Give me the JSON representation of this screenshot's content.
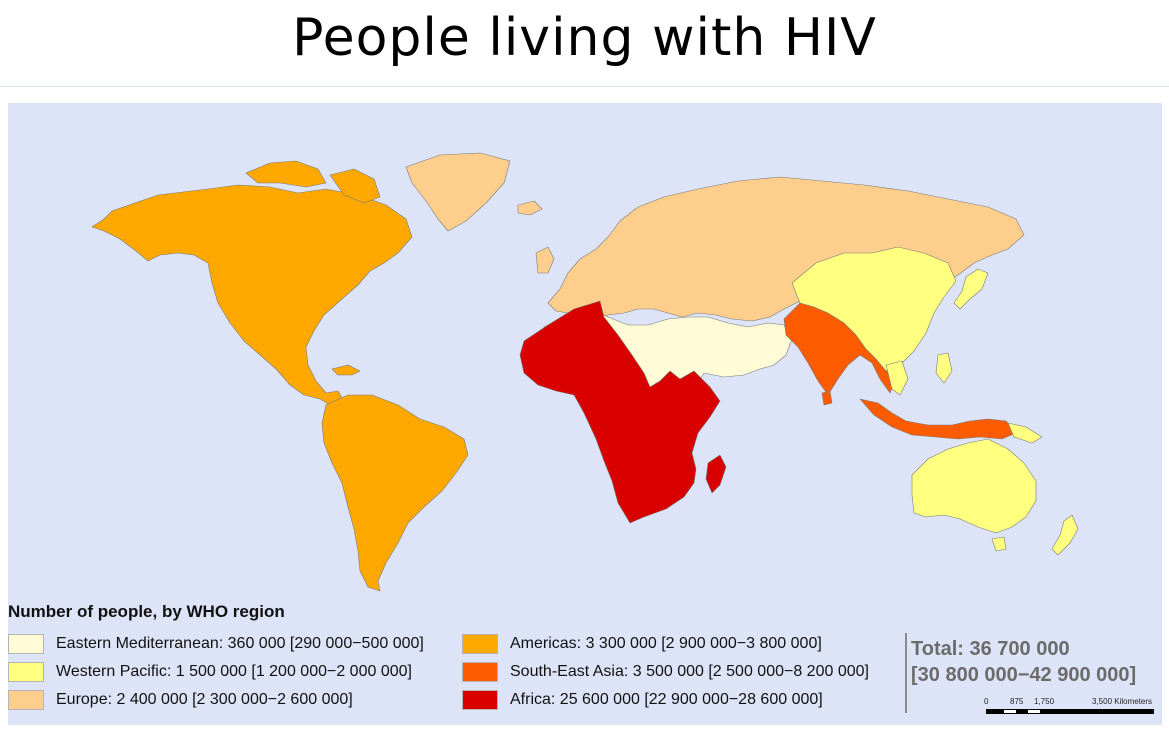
{
  "title": "People living with HIV",
  "legend": {
    "title": "Number of people, by WHO region",
    "items": [
      {
        "label": "Eastern Mediterranean: 360 000 [290 000−500 000]",
        "color": "#fffbd6"
      },
      {
        "label": "Western Pacific: 1 500 000 [1 200 000−2 000 000]",
        "color": "#ffff80"
      },
      {
        "label": "Europe: 2 400 000 [2 300 000−2 600 000]",
        "color": "#fecf8c"
      },
      {
        "label": "Americas: 3 300 000 [2 900 000−3 800 000]",
        "color": "#fea800"
      },
      {
        "label": "South-East Asia: 3 500 000 [2 500 000−8 200 000]",
        "color": "#fd5b00"
      },
      {
        "label": "Africa: 25 600 000 [22 900 000−28 600 000]",
        "color": "#d90000"
      }
    ]
  },
  "total": {
    "line1": "Total: 36 700 000",
    "line2": "[30 800 000−42 900 000]"
  },
  "scale": {
    "labels": [
      "0",
      "875",
      "1,750",
      "3,500 Kilometers"
    ]
  },
  "colors": {
    "ocean": "#dde4f7",
    "eastern_mediterranean": "#fffbd6",
    "western_pacific": "#ffff80",
    "europe": "#fecf8c",
    "americas": "#fea800",
    "south_east_asia": "#fd5b00",
    "africa": "#d90000"
  }
}
